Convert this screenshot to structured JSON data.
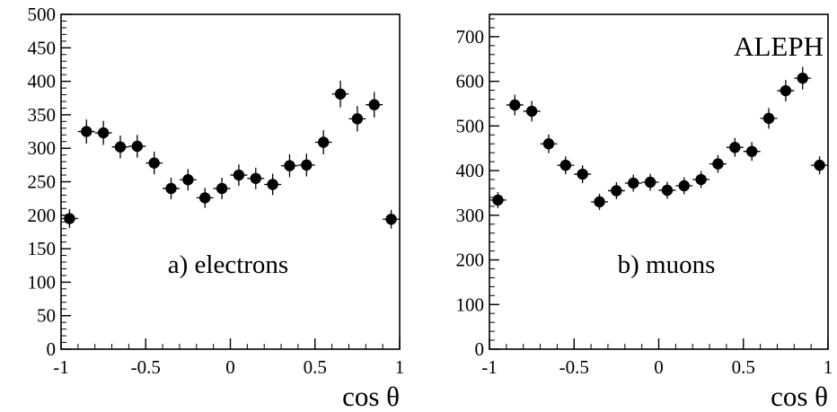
{
  "chart_data": [
    {
      "type": "scatter",
      "panel_label": "a) electrons",
      "xlabel": "cos θ",
      "ylabel": "",
      "xlim": [
        -1,
        1
      ],
      "ylim": [
        0,
        500
      ],
      "x_ticks": [
        -1,
        -0.5,
        0,
        0.5,
        1
      ],
      "x_tick_labels": [
        "-1",
        "-0.5",
        "0",
        "0.5",
        "1"
      ],
      "y_ticks": [
        0,
        50,
        100,
        150,
        200,
        250,
        300,
        350,
        400,
        450,
        500
      ],
      "y_tick_labels": [
        "0",
        "50",
        "100",
        "150",
        "200",
        "250",
        "300",
        "350",
        "400",
        "450",
        "500"
      ],
      "x_bin_halfwidth": 0.05,
      "x": [
        -0.95,
        -0.85,
        -0.75,
        -0.65,
        -0.55,
        -0.45,
        -0.35,
        -0.25,
        -0.15,
        -0.05,
        0.05,
        0.15,
        0.25,
        0.35,
        0.45,
        0.55,
        0.65,
        0.75,
        0.85,
        0.95
      ],
      "y": [
        195,
        325,
        323,
        302,
        303,
        278,
        240,
        253,
        226,
        240,
        260,
        255,
        246,
        274,
        275,
        309,
        381,
        344,
        365,
        194
      ],
      "y_err": [
        14,
        18,
        18,
        17,
        17,
        17,
        16,
        16,
        15,
        16,
        16,
        16,
        16,
        17,
        17,
        18,
        20,
        19,
        19,
        14
      ]
    },
    {
      "type": "scatter",
      "panel_label": "b) muons",
      "experiment_label": "ALEPH",
      "xlabel": "cos θ",
      "ylabel": "",
      "xlim": [
        -1,
        1
      ],
      "ylim": [
        0,
        750
      ],
      "x_ticks": [
        -1,
        -0.5,
        0,
        0.5,
        1
      ],
      "x_tick_labels": [
        "-1",
        "-0.5",
        "0",
        "0.5",
        "1"
      ],
      "y_ticks": [
        0,
        100,
        200,
        300,
        400,
        500,
        600,
        700
      ],
      "y_tick_labels": [
        "0",
        "100",
        "200",
        "300",
        "400",
        "500",
        "600",
        "700"
      ],
      "x_bin_halfwidth": 0.05,
      "x": [
        -0.95,
        -0.85,
        -0.75,
        -0.65,
        -0.55,
        -0.45,
        -0.35,
        -0.25,
        -0.15,
        -0.05,
        0.05,
        0.15,
        0.25,
        0.35,
        0.45,
        0.55,
        0.65,
        0.75,
        0.85,
        0.95
      ],
      "y": [
        334,
        547,
        533,
        460,
        412,
        392,
        330,
        355,
        372,
        374,
        356,
        366,
        380,
        415,
        452,
        443,
        517,
        579,
        607,
        412
      ],
      "y_err": [
        18,
        23,
        23,
        21,
        20,
        20,
        18,
        19,
        19,
        19,
        19,
        19,
        19,
        20,
        21,
        21,
        23,
        24,
        25,
        20
      ]
    }
  ]
}
